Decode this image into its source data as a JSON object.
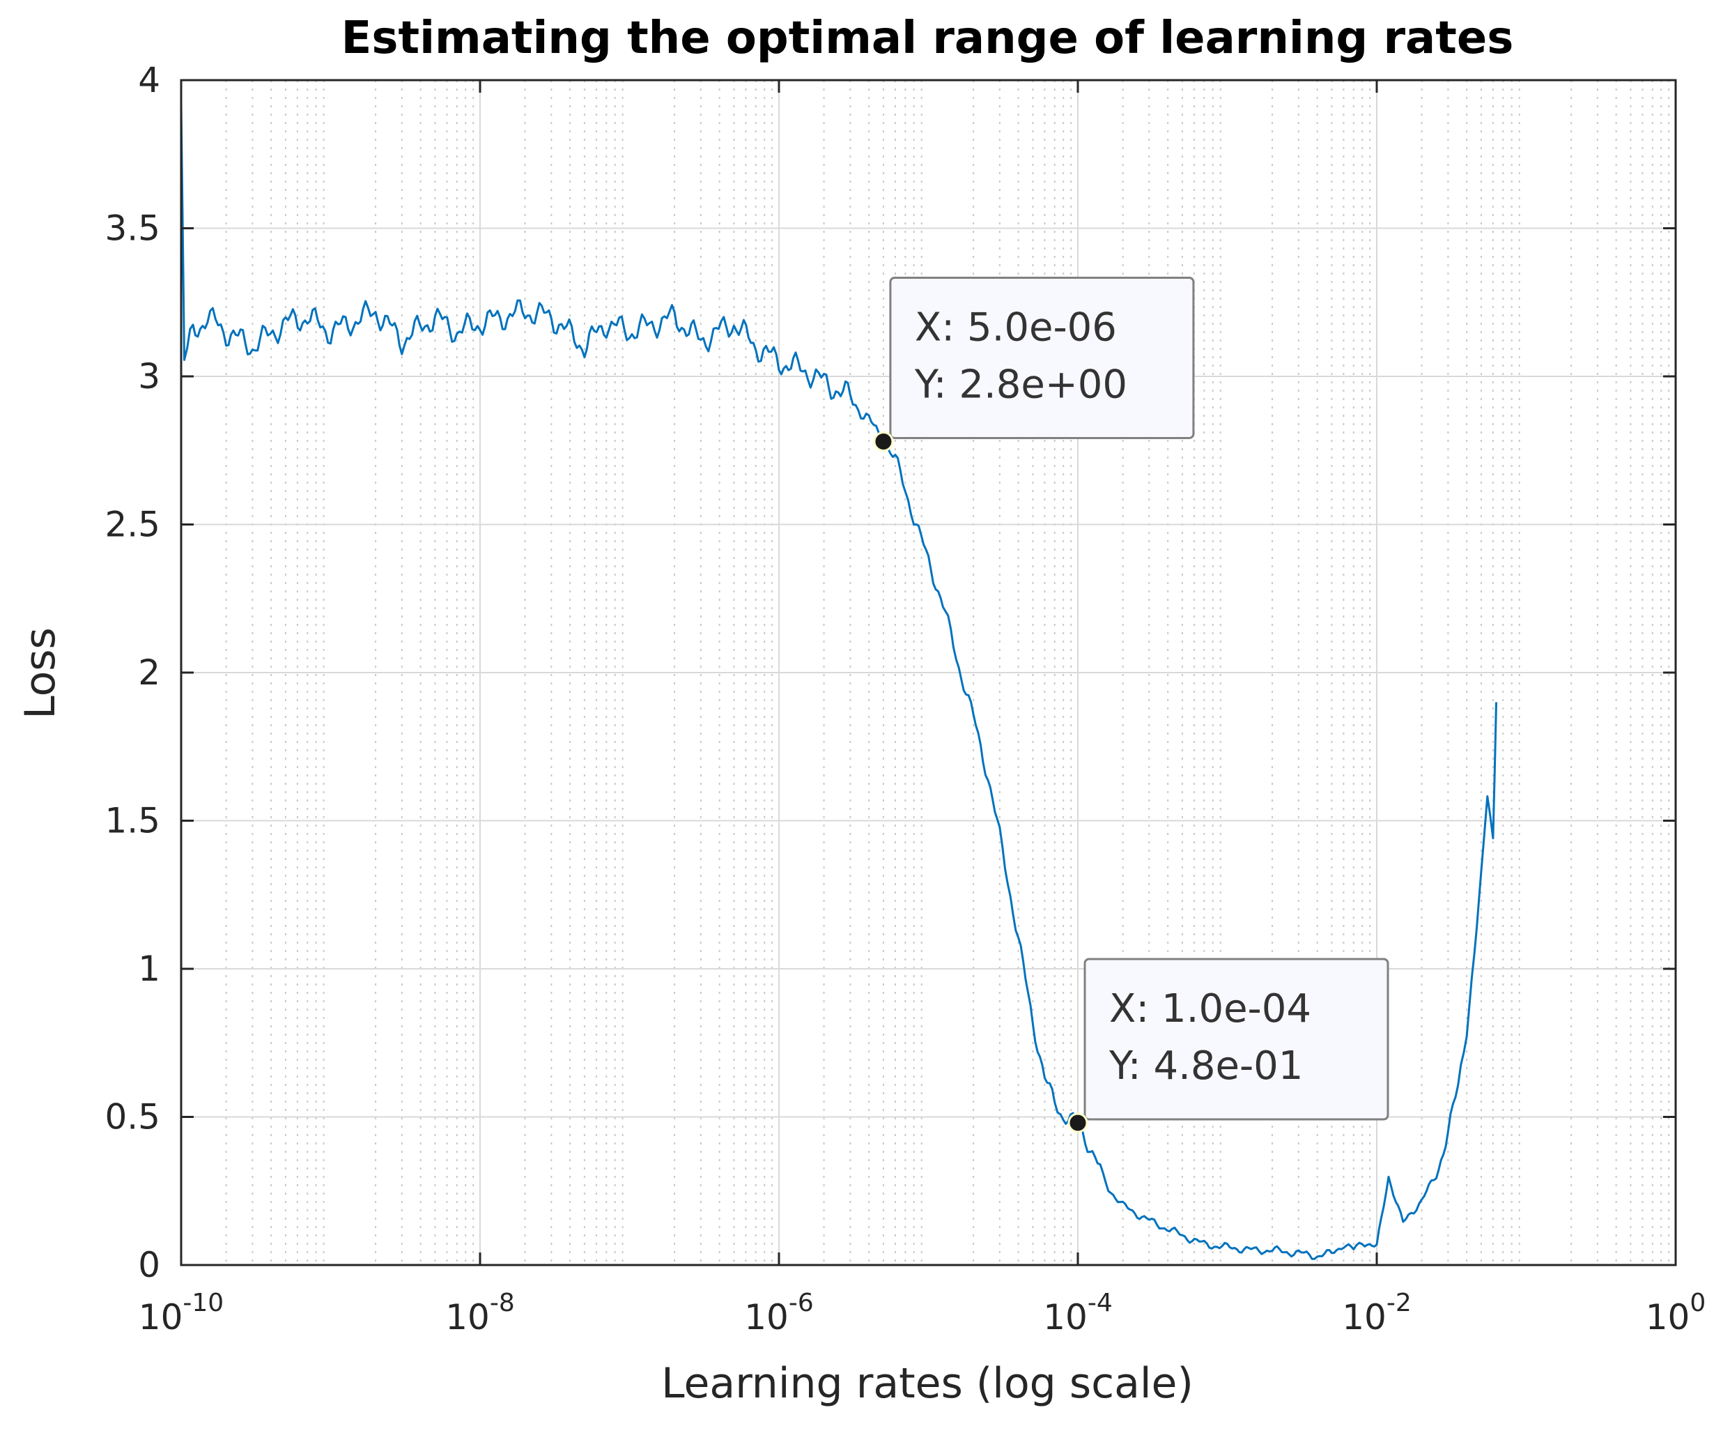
{
  "chart_data": {
    "type": "line",
    "title": "Estimating the optimal range of learning rates",
    "xlabel": "Learning rates (log scale)",
    "ylabel": "Loss",
    "xscale": "log",
    "xlim": [
      1e-10,
      1
    ],
    "ylim": [
      0,
      4
    ],
    "grid": true,
    "minor_grid": true,
    "x_ticks": [
      {
        "value": 1e-10,
        "base": "10",
        "exp": "-10"
      },
      {
        "value": 1e-08,
        "base": "10",
        "exp": "-8"
      },
      {
        "value": 1e-06,
        "base": "10",
        "exp": "-6"
      },
      {
        "value": 0.0001,
        "base": "10",
        "exp": "-4"
      },
      {
        "value": 0.01,
        "base": "10",
        "exp": "-2"
      },
      {
        "value": 1,
        "base": "10",
        "exp": "0"
      }
    ],
    "y_ticks": [
      {
        "value": 0,
        "label": "0"
      },
      {
        "value": 0.5,
        "label": "0.5"
      },
      {
        "value": 1,
        "label": "1"
      },
      {
        "value": 1.5,
        "label": "1.5"
      },
      {
        "value": 2,
        "label": "2"
      },
      {
        "value": 2.5,
        "label": "2.5"
      },
      {
        "value": 3,
        "label": "3"
      },
      {
        "value": 3.5,
        "label": "3.5"
      },
      {
        "value": 4,
        "label": "4"
      }
    ],
    "series": [
      {
        "name": "loss",
        "color": "#0072BD",
        "x": [
          1e-10,
          1.05e-10,
          1.2e-10,
          1.5e-10,
          2e-10,
          3e-10,
          5e-10,
          7e-10,
          1e-09,
          2e-09,
          3e-09,
          5e-09,
          7e-09,
          1e-08,
          2e-08,
          3e-08,
          5e-08,
          7e-08,
          1e-07,
          2e-07,
          3e-07,
          5e-07,
          7e-07,
          1e-06,
          1.5e-06,
          2e-06,
          3e-06,
          4e-06,
          5e-06,
          6e-06,
          7e-06,
          8e-06,
          1e-05,
          1.3e-05,
          1.6e-05,
          2e-05,
          2.5e-05,
          3e-05,
          4e-05,
          5e-05,
          6e-05,
          7e-05,
          8e-05,
          0.0001,
          0.00013,
          0.00016,
          0.0002,
          0.0003,
          0.0005,
          0.0007,
          0.001,
          0.0015,
          0.002,
          0.003,
          0.004,
          0.005,
          0.006,
          0.007,
          0.008,
          0.01,
          0.012,
          0.015,
          0.02,
          0.025,
          0.03,
          0.035,
          0.04,
          0.045,
          0.05,
          0.055,
          0.06,
          0.063
        ],
        "y": [
          3.9,
          3.05,
          3.15,
          3.2,
          3.15,
          3.1,
          3.18,
          3.2,
          3.15,
          3.22,
          3.12,
          3.2,
          3.15,
          3.18,
          3.22,
          3.2,
          3.1,
          3.18,
          3.15,
          3.2,
          3.12,
          3.18,
          3.1,
          3.05,
          3.02,
          2.98,
          2.93,
          2.85,
          2.78,
          2.72,
          2.62,
          2.52,
          2.38,
          2.2,
          2.02,
          1.85,
          1.65,
          1.45,
          1.1,
          0.82,
          0.63,
          0.55,
          0.5,
          0.48,
          0.36,
          0.26,
          0.2,
          0.15,
          0.1,
          0.07,
          0.06,
          0.05,
          0.05,
          0.04,
          0.03,
          0.04,
          0.07,
          0.05,
          0.08,
          0.06,
          0.3,
          0.14,
          0.22,
          0.3,
          0.45,
          0.6,
          0.8,
          1.05,
          1.3,
          1.6,
          1.45,
          1.9
        ]
      }
    ],
    "annotations": [
      {
        "x": 5e-06,
        "y": 2.78,
        "line1": "X: 5.0e-06",
        "line2": "Y: 2.8e+00"
      },
      {
        "x": 0.0001,
        "y": 0.48,
        "line1": "X: 1.0e-04",
        "line2": "Y: 4.8e-01"
      }
    ],
    "colors": {
      "line": "#0072BD",
      "axis": "#262626",
      "grid": "#d9d9d9",
      "tip_bg": "#f8f8ff",
      "tip_border": "#808080",
      "marker": "#1a1a1a"
    }
  }
}
